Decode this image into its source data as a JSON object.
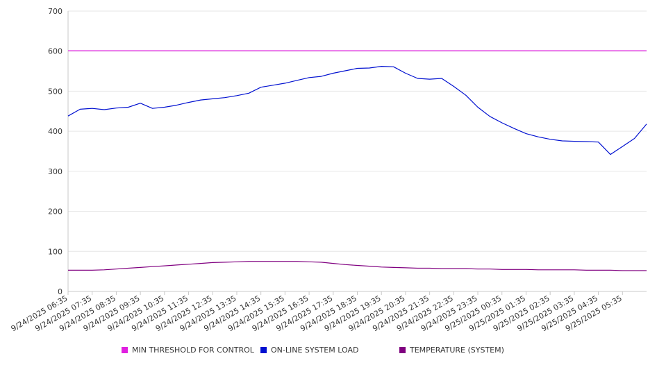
{
  "chart_data": {
    "type": "line",
    "ylim": [
      0,
      700
    ],
    "y_ticks": [
      "0",
      "100",
      "200",
      "300",
      "400",
      "500",
      "600",
      "700"
    ],
    "grid": true,
    "legend_position": "bottom",
    "x_tick_labels": [
      "9/24/2025 06:35",
      "9/24/2025 07:35",
      "9/24/2025 08:35",
      "9/24/2025 09:35",
      "9/24/2025 10:35",
      "9/24/2025 11:35",
      "9/24/2025 12:35",
      "9/24/2025 13:35",
      "9/24/2025 14:35",
      "9/24/2025 15:35",
      "9/24/2025 16:35",
      "9/24/2025 17:35",
      "9/24/2025 18:35",
      "9/24/2025 19:35",
      "9/24/2025 20:35",
      "9/24/2025 21:35",
      "9/24/2025 22:35",
      "9/24/2025 23:35",
      "9/25/2025 00:35",
      "9/25/2025 01:35",
      "9/25/2025 02:35",
      "9/25/2025 03:35",
      "9/25/2025 04:35",
      "9/25/2025 05:35"
    ],
    "x_values": [
      "06:35",
      "07:05",
      "07:35",
      "08:05",
      "08:35",
      "09:05",
      "09:35",
      "10:05",
      "10:35",
      "11:05",
      "11:35",
      "12:05",
      "12:35",
      "13:05",
      "13:35",
      "14:05",
      "14:35",
      "15:05",
      "15:35",
      "16:05",
      "16:35",
      "17:05",
      "17:35",
      "18:05",
      "18:35",
      "19:05",
      "19:35",
      "20:05",
      "20:35",
      "21:05",
      "21:35",
      "22:05",
      "22:35",
      "23:05",
      "23:35",
      "00:05",
      "00:35",
      "01:05",
      "01:35",
      "02:05",
      "02:35",
      "03:05",
      "03:35",
      "04:05",
      "04:35",
      "05:05",
      "05:35",
      "06:05",
      "06:35"
    ],
    "series": [
      {
        "name": "MIN THRESHOLD FOR CONTROL",
        "color": "#e020e0",
        "values": [
          601,
          601,
          601,
          601,
          601,
          601,
          601,
          601,
          601,
          601,
          601,
          601,
          601,
          601,
          601,
          601,
          601,
          601,
          601,
          601,
          601,
          601,
          601,
          601,
          601,
          601,
          601,
          601,
          601,
          601,
          601,
          601,
          601,
          601,
          601,
          601,
          601,
          601,
          601,
          601,
          601,
          601,
          601,
          601,
          601,
          601,
          601,
          601,
          601
        ]
      },
      {
        "name": "ON-LINE SYSTEM LOAD",
        "color": "#0010d0",
        "values": [
          438,
          455,
          457,
          454,
          458,
          460,
          470,
          457,
          460,
          465,
          472,
          478,
          481,
          484,
          489,
          495,
          510,
          515,
          520,
          527,
          534,
          537,
          545,
          551,
          557,
          558,
          562,
          561,
          545,
          532,
          530,
          532,
          512,
          490,
          460,
          437,
          421,
          407,
          394,
          386,
          380,
          376,
          375,
          374,
          373,
          342,
          362,
          382,
          418
        ]
      },
      {
        "name": "TEMPERATURE (SYSTEM)",
        "color": "#800080",
        "values": [
          53,
          53,
          53,
          54,
          56,
          58,
          60,
          62,
          64,
          66,
          68,
          70,
          72,
          73,
          74,
          75,
          75,
          75,
          75,
          75,
          74,
          73,
          70,
          67,
          65,
          63,
          61,
          60,
          59,
          58,
          58,
          57,
          57,
          57,
          56,
          56,
          55,
          55,
          55,
          54,
          54,
          54,
          54,
          53,
          53,
          53,
          52,
          52,
          52
        ]
      }
    ]
  }
}
